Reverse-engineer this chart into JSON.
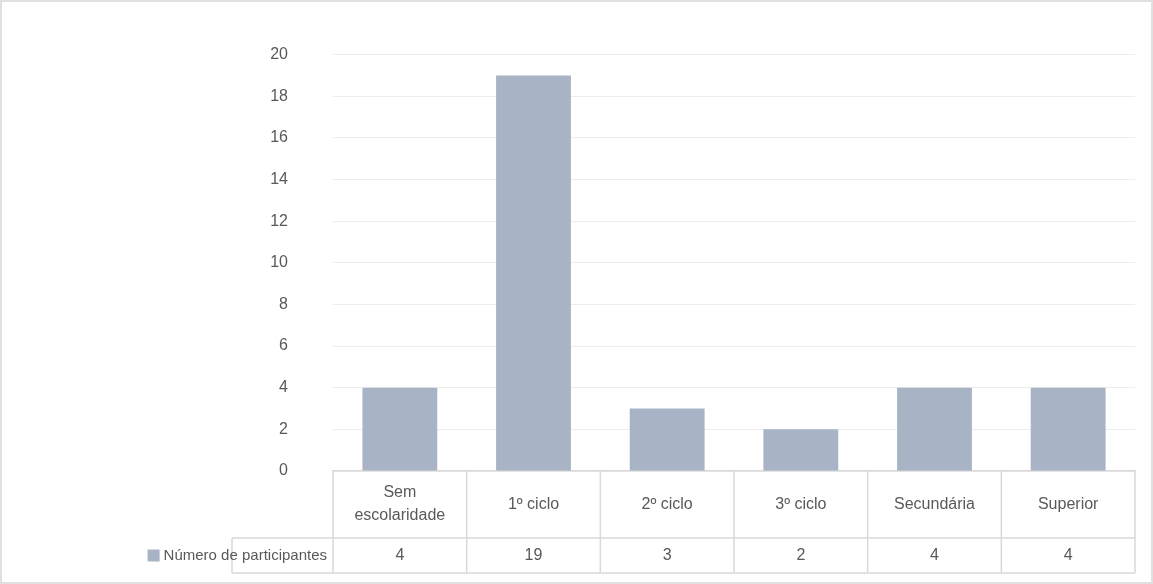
{
  "chart_data": {
    "type": "bar",
    "categories": [
      "Sem escolaridade",
      "1º ciclo",
      "2º ciclo",
      "3º ciclo",
      "Secundária",
      "Superior"
    ],
    "series": [
      {
        "name": "Número de participantes",
        "color": "#a8b4c5",
        "values": [
          4,
          19,
          3,
          2,
          4,
          4
        ]
      }
    ],
    "ylim": [
      0,
      20
    ],
    "yticks": [
      0,
      2,
      4,
      6,
      8,
      10,
      12,
      14,
      16,
      18,
      20
    ],
    "grid": "y",
    "legend": "bottom left",
    "data_labels": true
  }
}
